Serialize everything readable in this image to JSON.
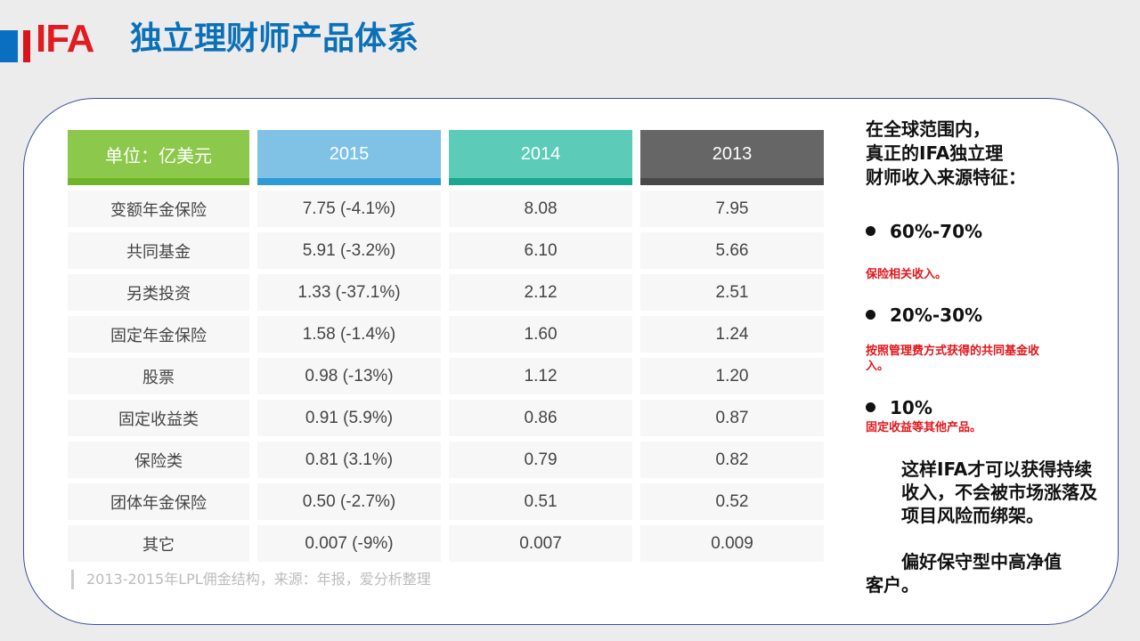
{
  "header": {
    "logo": "IFA",
    "title": "独立理财师产品体系",
    "colors": {
      "blue": "#0a6fc0",
      "red": "#e11b22"
    }
  },
  "table": {
    "headers": [
      "单位：亿美元",
      "2015",
      "2014",
      "2013"
    ],
    "rows": [
      [
        "变额年金保险",
        "7.75 (-4.1%)",
        "8.08",
        "7.95"
      ],
      [
        "共同基金",
        "5.91 (-3.2%)",
        "6.10",
        "5.66"
      ],
      [
        "另类投资",
        "1.33 (-37.1%)",
        "2.12",
        "2.51"
      ],
      [
        "固定年金保险",
        "1.58 (-1.4%)",
        "1.60",
        "1.24"
      ],
      [
        "股票",
        "0.98 (-13%)",
        "1.12",
        "1.20"
      ],
      [
        "固定收益类",
        "0.91 (5.9%)",
        "0.86",
        "0.87"
      ],
      [
        "保险类",
        "0.81 (3.1%)",
        "0.79",
        "0.82"
      ],
      [
        "团体年金保险",
        "0.50 (-2.7%)",
        "0.51",
        "0.52"
      ],
      [
        "其它",
        "0.007 (-9%)",
        "0.007",
        "0.009"
      ]
    ],
    "source": "2013-2015年LPL佣金结构，来源：年报，爱分析整理"
  },
  "right": {
    "intro": [
      "在全球范围内，",
      "真正的IFA独立理",
      "财师收入来源特征："
    ],
    "items": [
      {
        "pct": "60%-70%",
        "desc": "保险相关收入。"
      },
      {
        "pct": "20%-30%",
        "desc": "按照管理费方式获得的共同基金收入。"
      },
      {
        "pct": "10%",
        "desc": "固定收益等其他产品。"
      }
    ],
    "conclusion": "这样IFA才可以获得持续收入，不会被市场涨落及项目风险而绑架。",
    "conclusion2": "偏好保守型中高净值客户。"
  }
}
